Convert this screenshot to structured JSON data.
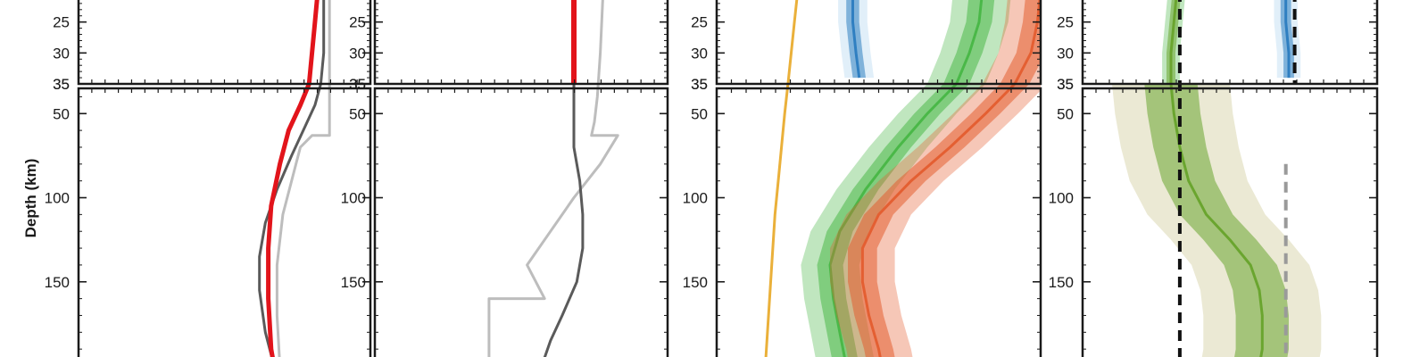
{
  "chart_data": {
    "type": "line",
    "ylabel": "Depth (km)",
    "y_axis_inverted": true,
    "upper_yticks": [
      25,
      30,
      35
    ],
    "lower_yticks": [
      50,
      100,
      150
    ],
    "upper_ylim": [
      20,
      35
    ],
    "lower_ylim": [
      35,
      200
    ],
    "colors": {
      "red": "#e2141b",
      "dark_gray": "#5a5a5a",
      "light_gray": "#bdbdbd",
      "orange": "#eab03a",
      "blue": "#2f7fc1",
      "blue_light": "#a9d0ee",
      "green": "#4ab848",
      "green_dark": "#6aa52f",
      "orange_red": "#e45f32",
      "olive": "#c5bf84",
      "black": "#111111",
      "dashed_gray": "#9a9a9a"
    },
    "panels": [
      {
        "name": "panel-1",
        "series": [
          {
            "key": "light_gray",
            "style": "solid",
            "width": 3,
            "points": [
              [
                0.86,
                20
              ],
              [
                0.86,
                35
              ],
              [
                0.86,
                63
              ],
              [
                0.8,
                63
              ],
              [
                0.76,
                70
              ],
              [
                0.73,
                90
              ],
              [
                0.7,
                110
              ],
              [
                0.68,
                140
              ],
              [
                0.68,
                170
              ],
              [
                0.69,
                200
              ]
            ]
          },
          {
            "key": "dark_gray",
            "style": "solid",
            "width": 3,
            "points": [
              [
                0.84,
                20
              ],
              [
                0.84,
                30
              ],
              [
                0.83,
                35
              ],
              [
                0.81,
                45
              ],
              [
                0.77,
                60
              ],
              [
                0.73,
                75
              ],
              [
                0.68,
                95
              ],
              [
                0.64,
                115
              ],
              [
                0.62,
                135
              ],
              [
                0.62,
                155
              ],
              [
                0.64,
                180
              ],
              [
                0.67,
                200
              ]
            ]
          },
          {
            "key": "red",
            "style": "solid",
            "width": 5,
            "points": [
              [
                0.82,
                20
              ],
              [
                0.81,
                25
              ],
              [
                0.8,
                30
              ],
              [
                0.79,
                35
              ],
              [
                0.76,
                45
              ],
              [
                0.72,
                60
              ],
              [
                0.69,
                80
              ],
              [
                0.66,
                105
              ],
              [
                0.65,
                130
              ],
              [
                0.65,
                160
              ],
              [
                0.66,
                190
              ],
              [
                0.67,
                200
              ]
            ]
          }
        ]
      },
      {
        "name": "panel-2",
        "series": [
          {
            "key": "light_gray",
            "style": "solid",
            "width": 3,
            "points": [
              [
                0.78,
                20
              ],
              [
                0.77,
                30
              ],
              [
                0.76,
                40
              ],
              [
                0.75,
                55
              ],
              [
                0.74,
                63
              ],
              [
                0.83,
                63
              ],
              [
                0.77,
                80
              ],
              [
                0.68,
                100
              ],
              [
                0.6,
                120
              ],
              [
                0.52,
                140
              ],
              [
                0.58,
                160
              ],
              [
                0.39,
                160
              ],
              [
                0.39,
                200
              ]
            ]
          },
          {
            "key": "dark_gray",
            "style": "solid",
            "width": 3,
            "points": [
              [
                0.68,
                35
              ],
              [
                0.68,
                50
              ],
              [
                0.68,
                70
              ],
              [
                0.7,
                90
              ],
              [
                0.71,
                110
              ],
              [
                0.71,
                130
              ],
              [
                0.69,
                150
              ],
              [
                0.64,
                170
              ],
              [
                0.6,
                185
              ],
              [
                0.57,
                200
              ]
            ]
          },
          {
            "key": "red",
            "style": "solid",
            "width": 6,
            "points": [
              [
                0.68,
                20
              ],
              [
                0.68,
                25
              ],
              [
                0.68,
                30
              ],
              [
                0.68,
                35
              ]
            ]
          }
        ]
      },
      {
        "name": "panel-3",
        "series": [
          {
            "key": "orange",
            "style": "solid",
            "width": 3,
            "points": [
              [
                0.25,
                20
              ],
              [
                0.24,
                25
              ],
              [
                0.23,
                30
              ],
              [
                0.22,
                35
              ],
              [
                0.21,
                50
              ],
              [
                0.2,
                70
              ],
              [
                0.19,
                90
              ],
              [
                0.18,
                110
              ],
              [
                0.17,
                140
              ],
              [
                0.16,
                170
              ],
              [
                0.15,
                200
              ]
            ]
          }
        ],
        "bands": [
          {
            "key": "blue",
            "half_width_outer": 0.045,
            "half_width_inner": 0.02,
            "light": "blue_light",
            "center": [
              [
                0.42,
                20
              ],
              [
                0.42,
                25
              ],
              [
                0.43,
                30
              ],
              [
                0.44,
                34
              ]
            ]
          },
          {
            "key": "green",
            "half_width_outer": 0.09,
            "half_width_inner": 0.04,
            "light": "green",
            "center": [
              [
                0.82,
                20
              ],
              [
                0.81,
                25
              ],
              [
                0.78,
                30
              ],
              [
                0.74,
                35
              ],
              [
                0.65,
                50
              ],
              [
                0.56,
                70
              ],
              [
                0.46,
                95
              ],
              [
                0.38,
                120
              ],
              [
                0.35,
                140
              ],
              [
                0.36,
                160
              ],
              [
                0.38,
                180
              ],
              [
                0.4,
                200
              ]
            ]
          },
          {
            "key": "orange_red",
            "half_width_outer": 0.1,
            "half_width_inner": 0.045,
            "light": "orange_red",
            "center": [
              [
                1.0,
                20
              ],
              [
                0.99,
                25
              ],
              [
                0.97,
                30
              ],
              [
                0.92,
                35
              ],
              [
                0.83,
                50
              ],
              [
                0.72,
                70
              ],
              [
                0.6,
                90
              ],
              [
                0.5,
                110
              ],
              [
                0.45,
                130
              ],
              [
                0.45,
                150
              ],
              [
                0.47,
                170
              ],
              [
                0.5,
                190
              ],
              [
                0.51,
                200
              ]
            ]
          }
        ]
      },
      {
        "name": "panel-4",
        "series": [
          {
            "key": "black",
            "style": "dashed",
            "width": 4,
            "points": [
              [
                0.33,
                20
              ],
              [
                0.33,
                200
              ]
            ]
          },
          {
            "key": "black",
            "style": "dashed",
            "width": 4,
            "points": [
              [
                0.72,
                20
              ],
              [
                0.72,
                35
              ]
            ]
          },
          {
            "key": "dashed_gray",
            "style": "dashed",
            "width": 4,
            "points": [
              [
                0.69,
                80
              ],
              [
                0.69,
                200
              ]
            ]
          }
        ],
        "bands": [
          {
            "key": "blue",
            "half_width_outer": 0.04,
            "half_width_inner": 0.018,
            "light": "blue_light",
            "center": [
              [
                0.69,
                20
              ],
              [
                0.69,
                25
              ],
              [
                0.7,
                30
              ],
              [
                0.7,
                34
              ]
            ]
          },
          {
            "key": "green_dark",
            "half_width_outer": 0.03,
            "half_width_inner": 0.015,
            "light": "green",
            "center": [
              [
                0.32,
                20
              ],
              [
                0.31,
                25
              ],
              [
                0.3,
                30
              ],
              [
                0.3,
                35
              ]
            ]
          },
          {
            "key": "green_dark",
            "half_width_outer": 0.2,
            "half_width_inner": 0.09,
            "light": "olive",
            "center": [
              [
                0.3,
                35
              ],
              [
                0.31,
                50
              ],
              [
                0.33,
                70
              ],
              [
                0.36,
                90
              ],
              [
                0.42,
                110
              ],
              [
                0.5,
                125
              ],
              [
                0.57,
                140
              ],
              [
                0.6,
                155
              ],
              [
                0.61,
                170
              ],
              [
                0.61,
                190
              ],
              [
                0.6,
                200
              ]
            ]
          }
        ]
      }
    ]
  }
}
